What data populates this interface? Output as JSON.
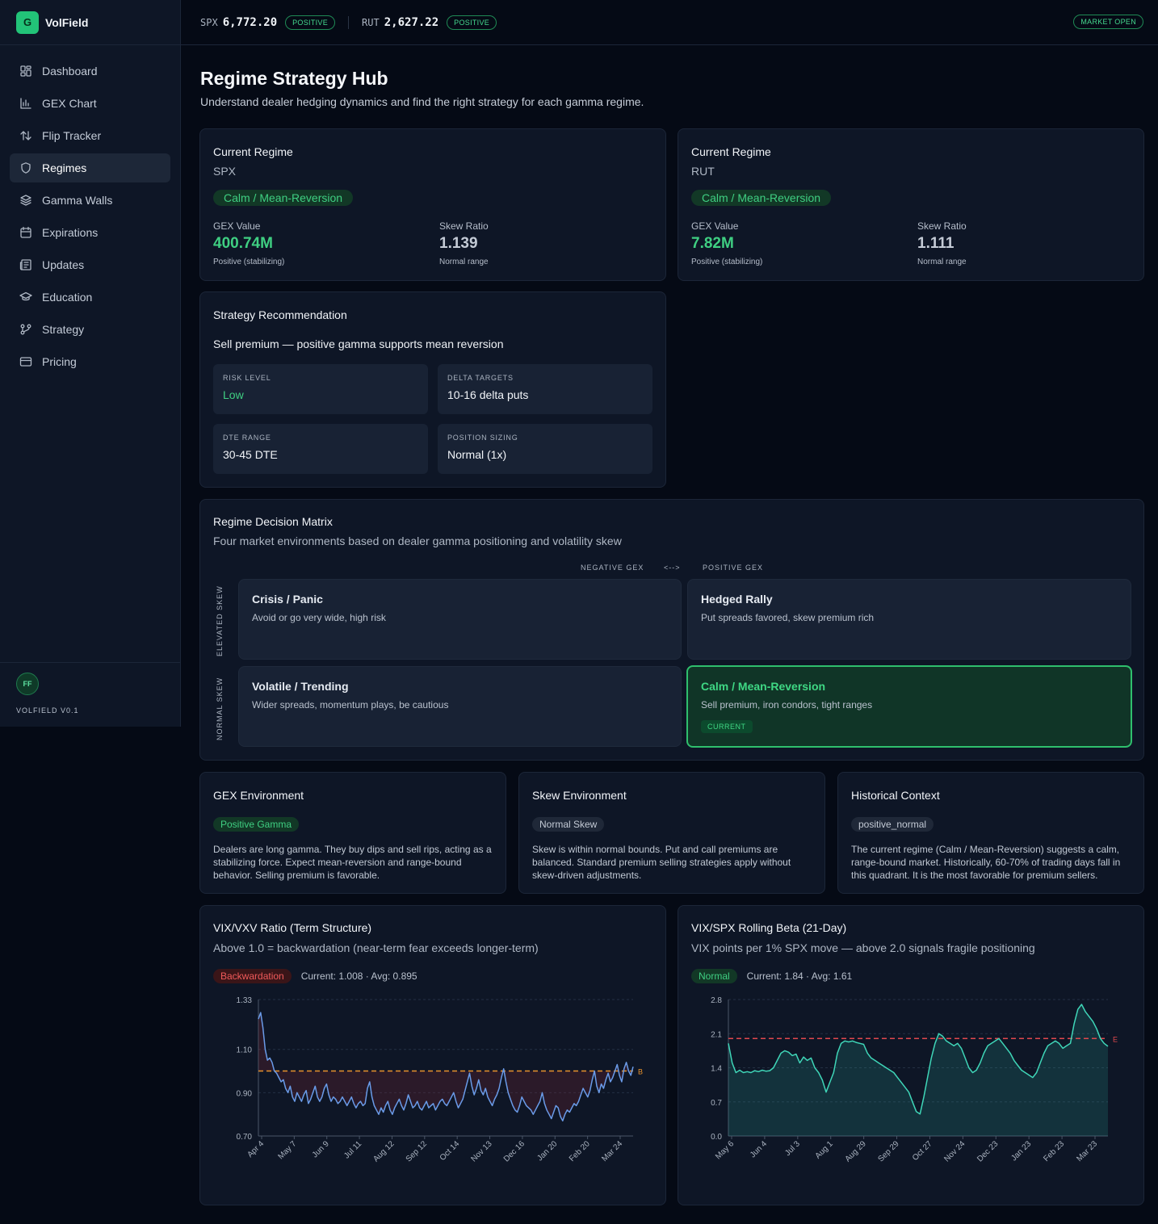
{
  "app": {
    "logo_letter": "G",
    "name": "VolField",
    "avatar_initials": "FF",
    "version": "VOLFIELD V0.1"
  },
  "nav": [
    {
      "label": "Dashboard",
      "icon": "dashboard-icon",
      "active": false
    },
    {
      "label": "GEX Chart",
      "icon": "bar-chart-icon",
      "active": false
    },
    {
      "label": "Flip Tracker",
      "icon": "arrows-updown-icon",
      "active": false
    },
    {
      "label": "Regimes",
      "icon": "shield-icon",
      "active": true
    },
    {
      "label": "Gamma Walls",
      "icon": "layers-icon",
      "active": false
    },
    {
      "label": "Expirations",
      "icon": "calendar-icon",
      "active": false
    },
    {
      "label": "Updates",
      "icon": "newspaper-icon",
      "active": false
    },
    {
      "label": "Education",
      "icon": "graduation-cap-icon",
      "active": false
    },
    {
      "label": "Strategy",
      "icon": "git-branch-icon",
      "active": false
    },
    {
      "label": "Pricing",
      "icon": "credit-card-icon",
      "active": false
    }
  ],
  "topbar": {
    "tickers": [
      {
        "symbol": "SPX",
        "value": "6,772.20",
        "status": "POSITIVE"
      },
      {
        "symbol": "RUT",
        "value": "2,627.22",
        "status": "POSITIVE"
      }
    ],
    "market_status": "MARKET OPEN"
  },
  "page": {
    "title": "Regime Strategy Hub",
    "subtitle": "Understand dealer hedging dynamics and find the right strategy for each gamma regime."
  },
  "regimes": [
    {
      "title": "Current Regime",
      "symbol": "SPX",
      "badge": "Calm / Mean-Reversion",
      "gex_label": "GEX Value",
      "gex_value": "400.74M",
      "gex_note": "Positive (stabilizing)",
      "skew_label": "Skew Ratio",
      "skew_value": "1.139",
      "skew_note": "Normal range"
    },
    {
      "title": "Current Regime",
      "symbol": "RUT",
      "badge": "Calm / Mean-Reversion",
      "gex_label": "GEX Value",
      "gex_value": "7.82M",
      "gex_note": "Positive (stabilizing)",
      "skew_label": "Skew Ratio",
      "skew_value": "1.111",
      "skew_note": "Normal range"
    }
  ],
  "strategy": {
    "title": "Strategy Recommendation",
    "headline": "Sell premium — positive gamma supports mean reversion",
    "boxes": [
      {
        "label": "RISK LEVEL",
        "value": "Low",
        "color": "#3fcf82"
      },
      {
        "label": "DELTA TARGETS",
        "value": "10-16 delta puts",
        "color": "#f1f4f8"
      },
      {
        "label": "DTE RANGE",
        "value": "30-45 DTE",
        "color": "#f1f4f8"
      },
      {
        "label": "POSITION SIZING",
        "value": "Normal (1x)",
        "color": "#f1f4f8"
      }
    ]
  },
  "matrix": {
    "title": "Regime Decision Matrix",
    "subtitle": "Four market environments based on dealer gamma positioning and volatility skew",
    "x_neg": "NEGATIVE GEX",
    "x_arrow": "<-->",
    "x_pos": "POSITIVE GEX",
    "y_top": "ELEVATED SKEW",
    "y_bottom": "NORMAL SKEW",
    "cells": [
      {
        "title": "Crisis / Panic",
        "desc": "Avoid or go very wide, high risk"
      },
      {
        "title": "Hedged Rally",
        "desc": "Put spreads favored, skew premium rich"
      },
      {
        "title": "Volatile / Trending",
        "desc": "Wider spreads, momentum plays, be cautious"
      },
      {
        "title": "Calm / Mean-Reversion",
        "desc": "Sell premium, iron condors, tight ranges",
        "tag": "CURRENT"
      }
    ]
  },
  "environments": [
    {
      "title": "GEX Environment",
      "badge": "Positive Gamma",
      "badge_bg": "#123826",
      "badge_fg": "#3fcf82",
      "text": "Dealers are long gamma. They buy dips and sell rips, acting as a stabilizing force. Expect mean-reversion and range-bound behavior. Selling premium is favorable."
    },
    {
      "title": "Skew Environment",
      "badge": "Normal Skew",
      "badge_bg": "#1f2838",
      "badge_fg": "#c3cad5",
      "text": "Skew is within normal bounds. Put and call premiums are balanced. Standard premium selling strategies apply without skew-driven adjustments."
    },
    {
      "title": "Historical Context",
      "badge": "positive_normal",
      "badge_bg": "#1f2838",
      "badge_fg": "#c3cad5",
      "text": "The current regime (Calm / Mean-Reversion) suggests a calm, range-bound market. Historically, 60-70% of trading days fall in this quadrant. It is the most favorable for premium sellers."
    }
  ],
  "charts": {
    "vix": {
      "title": "VIX/VXV Ratio (Term Structure)",
      "subtitle": "Above 1.0 = backwardation (near-term fear exceeds longer-term)",
      "badge": "Backwardation",
      "stats": "Current: 1.008 · Avg: 0.895"
    },
    "beta": {
      "title": "VIX/SPX Rolling Beta (21-Day)",
      "subtitle": "VIX points per 1% SPX move — above 2.0 signals fragile positioning",
      "badge": "Normal",
      "stats": "Current: 1.84 · Avg: 1.61"
    }
  },
  "chart_data": [
    {
      "type": "line",
      "title": "VIX/VXV Ratio (Term Structure)",
      "ylim": [
        0.7,
        1.33
      ],
      "yticks": [
        "1.33",
        "1.10",
        "0.90",
        "0.70"
      ],
      "xticks": [
        "Apr 4",
        "May 7",
        "Jun 9",
        "Jul 11",
        "Aug 12",
        "Sep 12",
        "Oct 14",
        "Nov 13",
        "Dec 16",
        "Jan 20",
        "Feb 20",
        "Mar 24"
      ],
      "threshold": 1.0,
      "threshold_label": "B",
      "line_color": "#6a9be8",
      "threshold_color": "#e8922c",
      "values": [
        1.24,
        1.27,
        1.2,
        1.1,
        1.05,
        1.06,
        1.04,
        1.0,
        0.99,
        0.97,
        0.95,
        0.96,
        0.92,
        0.9,
        0.93,
        0.88,
        0.86,
        0.9,
        0.88,
        0.86,
        0.89,
        0.91,
        0.85,
        0.87,
        0.9,
        0.93,
        0.88,
        0.86,
        0.88,
        0.92,
        0.94,
        0.89,
        0.86,
        0.88,
        0.87,
        0.85,
        0.86,
        0.88,
        0.86,
        0.84,
        0.86,
        0.88,
        0.85,
        0.83,
        0.85,
        0.86,
        0.84,
        0.85,
        0.92,
        0.95,
        0.88,
        0.84,
        0.82,
        0.8,
        0.83,
        0.81,
        0.84,
        0.86,
        0.82,
        0.8,
        0.83,
        0.85,
        0.87,
        0.84,
        0.82,
        0.85,
        0.89,
        0.86,
        0.83,
        0.84,
        0.86,
        0.83,
        0.82,
        0.84,
        0.86,
        0.83,
        0.84,
        0.85,
        0.82,
        0.84,
        0.86,
        0.87,
        0.85,
        0.84,
        0.86,
        0.88,
        0.9,
        0.86,
        0.83,
        0.85,
        0.87,
        0.91,
        0.95,
        0.99,
        0.93,
        0.89,
        0.92,
        0.96,
        0.91,
        0.89,
        0.92,
        0.88,
        0.86,
        0.84,
        0.87,
        0.89,
        0.92,
        0.97,
        1.01,
        0.95,
        0.9,
        0.87,
        0.84,
        0.82,
        0.81,
        0.84,
        0.88,
        0.86,
        0.84,
        0.83,
        0.82,
        0.8,
        0.82,
        0.84,
        0.86,
        0.9,
        0.85,
        0.82,
        0.8,
        0.78,
        0.81,
        0.84,
        0.83,
        0.79,
        0.77,
        0.8,
        0.82,
        0.81,
        0.83,
        0.85,
        0.84,
        0.86,
        0.89,
        0.92,
        0.9,
        0.88,
        0.91,
        0.96,
        1.0,
        0.93,
        0.9,
        0.94,
        0.92,
        0.96,
        0.99,
        0.95,
        0.97,
        1.0,
        1.03,
        0.98,
        0.95,
        1.01,
        1.04,
        1.0,
        0.98,
        1.02
      ]
    },
    {
      "type": "area",
      "title": "VIX/SPX Rolling Beta (21-Day)",
      "ylim": [
        0.0,
        2.8
      ],
      "yticks": [
        "2.8",
        "2.1",
        "1.4",
        "0.7",
        "0.0"
      ],
      "xticks": [
        "May 6",
        "Jun 4",
        "Jul 3",
        "Aug 1",
        "Aug 29",
        "Sep 29",
        "Oct 27",
        "Nov 24",
        "Dec 23",
        "Jan 23",
        "Feb 23",
        "Mar 23"
      ],
      "threshold": 2.0,
      "threshold_label": "E",
      "line_color": "#3fd6b8",
      "threshold_color": "#e0484e",
      "values": [
        1.9,
        1.5,
        1.3,
        1.35,
        1.3,
        1.32,
        1.3,
        1.34,
        1.32,
        1.35,
        1.33,
        1.34,
        1.4,
        1.55,
        1.7,
        1.75,
        1.72,
        1.65,
        1.68,
        1.5,
        1.62,
        1.55,
        1.6,
        1.4,
        1.3,
        1.15,
        0.9,
        1.1,
        1.3,
        1.7,
        1.9,
        1.95,
        1.93,
        1.95,
        1.92,
        1.9,
        1.88,
        1.7,
        1.6,
        1.55,
        1.5,
        1.45,
        1.4,
        1.35,
        1.3,
        1.2,
        1.1,
        1.0,
        0.9,
        0.7,
        0.5,
        0.45,
        0.8,
        1.2,
        1.6,
        1.9,
        2.1,
        2.05,
        1.95,
        1.9,
        1.85,
        1.9,
        1.8,
        1.6,
        1.4,
        1.3,
        1.35,
        1.5,
        1.7,
        1.85,
        1.9,
        1.95,
        2.0,
        1.9,
        1.8,
        1.7,
        1.55,
        1.45,
        1.35,
        1.3,
        1.25,
        1.2,
        1.3,
        1.5,
        1.7,
        1.85,
        1.9,
        1.95,
        1.9,
        1.8,
        1.85,
        1.9,
        2.3,
        2.6,
        2.7,
        2.55,
        2.45,
        2.35,
        2.2,
        2.0,
        1.9,
        1.84
      ]
    }
  ]
}
